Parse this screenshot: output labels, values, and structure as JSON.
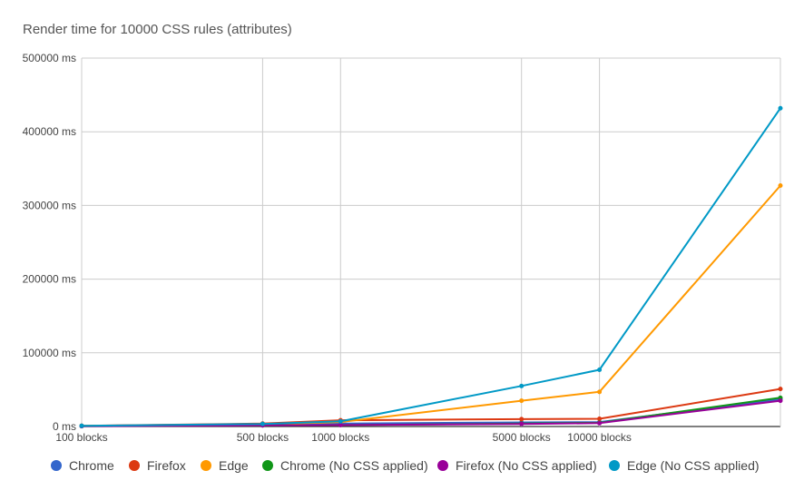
{
  "chart_data": {
    "type": "line",
    "title": "Render time for 10000 CSS rules (attributes)",
    "xlabel": "",
    "ylabel": "",
    "x_tick_labels": [
      "100 blocks",
      "500 blocks",
      "1000 blocks",
      "5000 blocks",
      "10000 blocks"
    ],
    "x": [
      100,
      500,
      1000,
      5000,
      10000,
      50000
    ],
    "xscale": "log",
    "xlim": [
      100,
      50000
    ],
    "y_tick_labels": [
      "0 ms",
      "100000 ms",
      "200000 ms",
      "300000 ms",
      "400000 ms",
      "500000 ms"
    ],
    "y_ticks": [
      0,
      100000,
      200000,
      300000,
      400000,
      500000
    ],
    "ylim": [
      0,
      500000
    ],
    "grid": true,
    "legend": "bottom",
    "series": [
      {
        "name": "Chrome",
        "color": "#3366cc",
        "values": [
          800,
          2500,
          4000,
          5500,
          6000,
          37000
        ]
      },
      {
        "name": "Firefox",
        "color": "#dc3912",
        "values": [
          1000,
          4000,
          8500,
          10000,
          10500,
          51000
        ]
      },
      {
        "name": "Edge",
        "color": "#ff9900",
        "values": [
          800,
          3000,
          6000,
          35000,
          47000,
          327000
        ]
      },
      {
        "name": "Chrome (No CSS applied)",
        "color": "#109618",
        "values": [
          500,
          1500,
          2000,
          4000,
          5000,
          39000
        ]
      },
      {
        "name": "Firefox (No CSS applied)",
        "color": "#990099",
        "values": [
          500,
          1500,
          2000,
          3500,
          4500,
          35000
        ]
      },
      {
        "name": "Edge (No CSS applied)",
        "color": "#0099c6",
        "values": [
          1000,
          3500,
          7000,
          55000,
          77000,
          432000
        ]
      }
    ]
  }
}
